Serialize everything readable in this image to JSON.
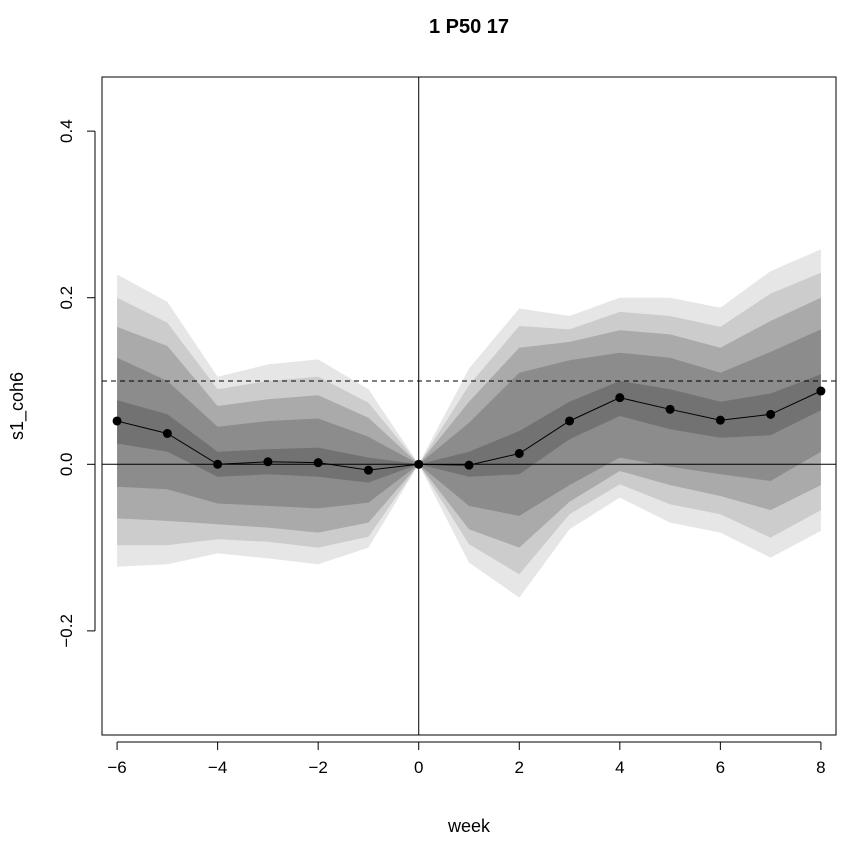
{
  "chart_data": {
    "type": "line",
    "title": "1 P50 17",
    "xlabel": "week",
    "ylabel": "s1_coh6",
    "xlim": [
      -6.3,
      8.3
    ],
    "ylim": [
      -0.325,
      0.465
    ],
    "x_ticks": [
      -6,
      -4,
      -2,
      0,
      2,
      4,
      6,
      8
    ],
    "x_tick_labels": [
      "−6",
      "−4",
      "−2",
      "0",
      "2",
      "4",
      "6",
      "8"
    ],
    "y_ticks": [
      -0.2,
      0.0,
      0.2,
      0.4
    ],
    "y_tick_labels": [
      "−0.2",
      "0.0",
      "0.2",
      "0.4"
    ],
    "reference_lines": {
      "dashed_horizontal": 0.1,
      "solid_horizontal": 0.0,
      "solid_vertical": 0
    },
    "x": [
      -6,
      -5,
      -4,
      -3,
      -2,
      -1,
      0,
      1,
      2,
      3,
      4,
      5,
      6,
      7,
      8
    ],
    "series": [
      {
        "y": [
          0.052,
          0.037,
          0.0,
          0.003,
          0.002,
          -0.007,
          0.0,
          -0.001,
          0.013,
          0.052,
          0.08,
          0.066,
          0.053,
          0.06,
          0.088
        ]
      }
    ],
    "bands": [
      {
        "color": "#e6e6e6",
        "upper": [
          0.228,
          0.195,
          0.105,
          0.12,
          0.126,
          0.09,
          0.0,
          0.115,
          0.187,
          0.178,
          0.2,
          0.2,
          0.188,
          0.232,
          0.258
        ],
        "lower": [
          -0.123,
          -0.12,
          -0.107,
          -0.113,
          -0.12,
          -0.1,
          0.0,
          -0.118,
          -0.16,
          -0.078,
          -0.04,
          -0.07,
          -0.082,
          -0.112,
          -0.08
        ]
      },
      {
        "color": "#cccccc",
        "upper": [
          0.2,
          0.17,
          0.09,
          0.1,
          0.105,
          0.074,
          0.0,
          0.095,
          0.166,
          0.162,
          0.183,
          0.178,
          0.165,
          0.205,
          0.23
        ],
        "lower": [
          -0.097,
          -0.097,
          -0.09,
          -0.093,
          -0.1,
          -0.087,
          0.0,
          -0.096,
          -0.132,
          -0.06,
          -0.024,
          -0.048,
          -0.06,
          -0.088,
          -0.055
        ]
      },
      {
        "color": "#aaaaaa",
        "upper": [
          0.165,
          0.142,
          0.07,
          0.078,
          0.083,
          0.056,
          0.0,
          0.075,
          0.14,
          0.147,
          0.161,
          0.156,
          0.14,
          0.172,
          0.2
        ],
        "lower": [
          -0.065,
          -0.068,
          -0.072,
          -0.076,
          -0.082,
          -0.07,
          0.0,
          -0.078,
          -0.1,
          -0.045,
          -0.008,
          -0.025,
          -0.038,
          -0.055,
          -0.025
        ]
      },
      {
        "color": "#8c8c8c",
        "upper": [
          0.128,
          0.1,
          0.045,
          0.052,
          0.055,
          0.033,
          0.0,
          0.05,
          0.11,
          0.125,
          0.134,
          0.128,
          0.11,
          0.135,
          0.162
        ],
        "lower": [
          -0.027,
          -0.03,
          -0.047,
          -0.05,
          -0.053,
          -0.046,
          0.0,
          -0.05,
          -0.062,
          -0.025,
          0.008,
          -0.003,
          -0.012,
          -0.02,
          0.015
        ]
      },
      {
        "color": "#727272",
        "upper": [
          0.077,
          0.06,
          0.015,
          0.018,
          0.02,
          0.008,
          0.0,
          0.015,
          0.04,
          0.075,
          0.1,
          0.09,
          0.075,
          0.085,
          0.108
        ],
        "lower": [
          0.025,
          0.015,
          -0.015,
          -0.012,
          -0.015,
          -0.022,
          0.0,
          -0.015,
          -0.012,
          0.03,
          0.058,
          0.042,
          0.032,
          0.035,
          0.065
        ]
      }
    ]
  }
}
